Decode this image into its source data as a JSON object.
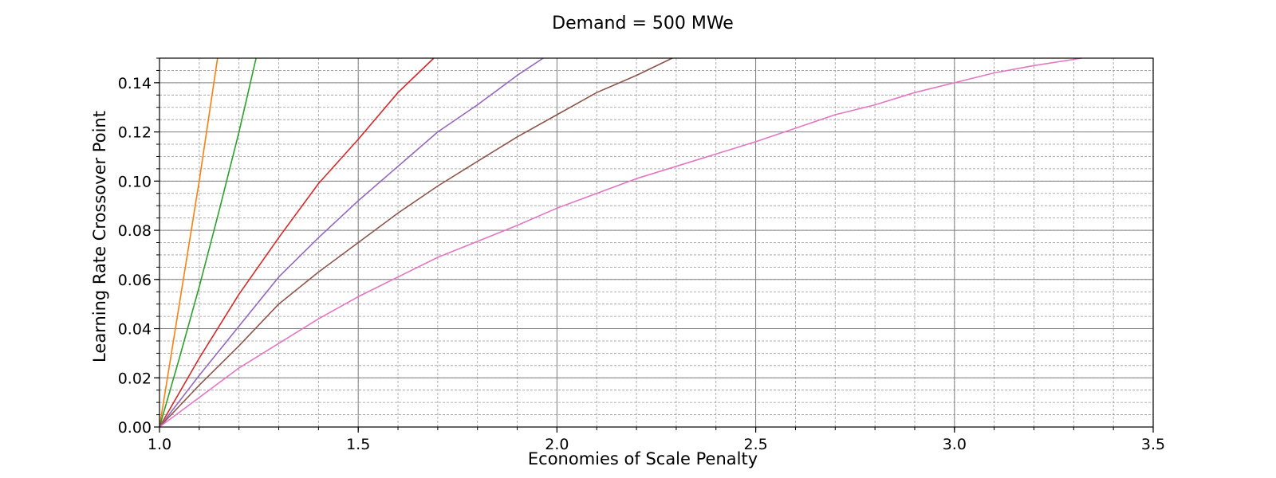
{
  "chart_data": {
    "type": "line",
    "title": "Demand = 500 MWe",
    "xlabel": "Economies of Scale Penalty",
    "ylabel": "Learning Rate Crossover Point",
    "xlim": [
      1.0,
      3.5
    ],
    "ylim": [
      0.0,
      0.15
    ],
    "xticks": [
      1.0,
      1.5,
      2.0,
      2.5,
      3.0,
      3.5
    ],
    "xtick_labels": [
      "1.0",
      "1.5",
      "2.0",
      "2.5",
      "3.0",
      "3.5"
    ],
    "yticks": [
      0.0,
      0.02,
      0.04,
      0.06,
      0.08,
      0.1,
      0.12,
      0.14
    ],
    "ytick_labels": [
      "0.00",
      "0.02",
      "0.04",
      "0.06",
      "0.08",
      "0.10",
      "0.12",
      "0.14"
    ],
    "grid": {
      "major": true,
      "minor": true,
      "minor_style": "dashed"
    },
    "series": [
      {
        "color": "#ff7f0e",
        "points": [
          [
            1.0,
            0.0
          ],
          [
            1.05,
            0.05
          ],
          [
            1.1,
            0.1
          ],
          [
            1.146,
            0.15
          ]
        ]
      },
      {
        "color": "#2ca02c",
        "points": [
          [
            1.0,
            0.0
          ],
          [
            1.05,
            0.028
          ],
          [
            1.1,
            0.057
          ],
          [
            1.15,
            0.088
          ],
          [
            1.2,
            0.12
          ],
          [
            1.243,
            0.15
          ]
        ]
      },
      {
        "color": "#d62728",
        "points": [
          [
            1.0,
            0.0
          ],
          [
            1.1,
            0.028
          ],
          [
            1.2,
            0.054
          ],
          [
            1.3,
            0.077
          ],
          [
            1.4,
            0.099
          ],
          [
            1.5,
            0.117
          ],
          [
            1.6,
            0.136
          ],
          [
            1.69,
            0.15
          ]
        ]
      },
      {
        "color": "#9467bd",
        "points": [
          [
            1.0,
            0.0
          ],
          [
            1.1,
            0.021
          ],
          [
            1.2,
            0.041
          ],
          [
            1.3,
            0.061
          ],
          [
            1.4,
            0.077
          ],
          [
            1.5,
            0.092
          ],
          [
            1.6,
            0.106
          ],
          [
            1.7,
            0.12
          ],
          [
            1.8,
            0.131
          ],
          [
            1.9,
            0.143
          ],
          [
            1.965,
            0.15
          ]
        ]
      },
      {
        "color": "#8c564b",
        "points": [
          [
            1.0,
            0.0
          ],
          [
            1.1,
            0.017
          ],
          [
            1.2,
            0.033
          ],
          [
            1.3,
            0.05
          ],
          [
            1.4,
            0.063
          ],
          [
            1.5,
            0.075
          ],
          [
            1.6,
            0.087
          ],
          [
            1.7,
            0.098
          ],
          [
            1.8,
            0.108
          ],
          [
            1.9,
            0.118
          ],
          [
            2.0,
            0.127
          ],
          [
            2.1,
            0.136
          ],
          [
            2.2,
            0.143
          ],
          [
            2.29,
            0.15
          ]
        ]
      },
      {
        "color": "#e377c2",
        "points": [
          [
            1.0,
            0.0
          ],
          [
            1.2,
            0.024
          ],
          [
            1.4,
            0.044
          ],
          [
            1.5,
            0.053
          ],
          [
            1.7,
            0.069
          ],
          [
            1.9,
            0.082
          ],
          [
            2.0,
            0.089
          ],
          [
            2.2,
            0.101
          ],
          [
            2.5,
            0.116
          ],
          [
            2.7,
            0.127
          ],
          [
            2.8,
            0.131
          ],
          [
            2.9,
            0.136
          ],
          [
            3.0,
            0.14
          ],
          [
            3.1,
            0.144
          ],
          [
            3.2,
            0.147
          ],
          [
            3.32,
            0.15
          ]
        ]
      }
    ]
  }
}
